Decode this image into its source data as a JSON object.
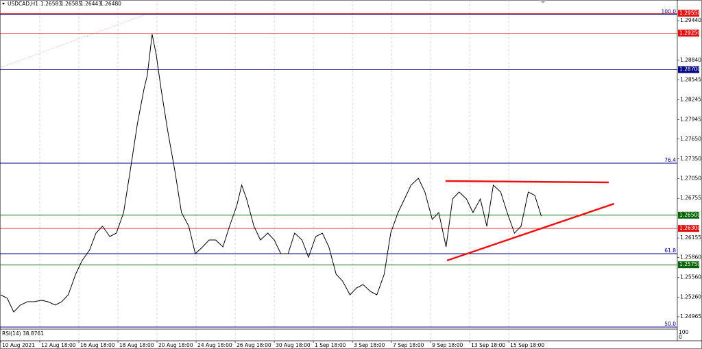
{
  "chart_data": {
    "type": "line",
    "title": "USDCAD,H1",
    "quotes": [
      "1.26583",
      "1.26585",
      "1.26443",
      "1.26480"
    ],
    "indicator": "RSI(14) 38.8761",
    "color": "#000000",
    "x": [
      0,
      8,
      16,
      24,
      33,
      41,
      50,
      58,
      67,
      75,
      83,
      92,
      100,
      109,
      117,
      125,
      134,
      142,
      151,
      159,
      168,
      176,
      180,
      186,
      191,
      197,
      205,
      214,
      222,
      231,
      239,
      248,
      256,
      264,
      273,
      281,
      290,
      296,
      302,
      311,
      319,
      328,
      336,
      344,
      353,
      361,
      370,
      378,
      387,
      395,
      403,
      412,
      420,
      429,
      437,
      445,
      454,
      462,
      471,
      479,
      488,
      496,
      504,
      513,
      521,
      530,
      538,
      547,
      555,
      563,
      572,
      580,
      589,
      597,
      605,
      614,
      622,
      631,
      639,
      648,
      656,
      664
    ],
    "values": [
      1.25296,
      1.25244,
      1.25037,
      1.25141,
      1.25192,
      1.25192,
      1.25213,
      1.25192,
      1.25141,
      1.25192,
      1.25296,
      1.25607,
      1.25814,
      1.25969,
      1.26228,
      1.26332,
      1.26177,
      1.26228,
      1.26539,
      1.27161,
      1.27886,
      1.28404,
      1.28611,
      1.29233,
      1.28922,
      1.28404,
      1.27782,
      1.27161,
      1.26539,
      1.26332,
      1.25918,
      1.26021,
      1.26125,
      1.26125,
      1.26021,
      1.26332,
      1.26643,
      1.26954,
      1.26746,
      1.26332,
      1.26125,
      1.26228,
      1.26125,
      1.25918,
      1.25918,
      1.26228,
      1.26125,
      1.25866,
      1.26177,
      1.26228,
      1.26021,
      1.25607,
      1.25503,
      1.25296,
      1.254,
      1.25451,
      1.25348,
      1.25296,
      1.25607,
      1.26228,
      1.26539,
      1.26746,
      1.26954,
      1.27057,
      1.2685,
      1.26436,
      1.26539,
      1.26021,
      1.26746,
      1.2685,
      1.26746,
      1.26539,
      1.26746,
      1.26332,
      1.26954,
      1.2685,
      1.26539,
      1.26228,
      1.26332,
      1.2685,
      1.26798,
      1.26487
    ],
    "xlim": [
      0,
      831
    ],
    "ylim": [
      1.2478,
      1.2957
    ],
    "xticks": [
      {
        "value": 0,
        "label": "10 Aug 2021"
      },
      {
        "value": 48,
        "label": "12 Aug 18:00"
      },
      {
        "value": 96,
        "label": "16 Aug 18:00"
      },
      {
        "value": 144,
        "label": "18 Aug 18:00"
      },
      {
        "value": 192,
        "label": "20 Aug 18:00"
      },
      {
        "value": 240,
        "label": "24 Aug 18:00"
      },
      {
        "value": 288,
        "label": "26 Aug 18:00"
      },
      {
        "value": 336,
        "label": "30 Aug 18:00"
      },
      {
        "value": 384,
        "label": "1 Sep 18:00"
      },
      {
        "value": 432,
        "label": "3 Sep 18:00"
      },
      {
        "value": 480,
        "label": "7 Sep 18:00"
      },
      {
        "value": 528,
        "label": "9 Sep 18:00"
      },
      {
        "value": 576,
        "label": "13 Sep 18:00"
      },
      {
        "value": 624,
        "label": "15 Sep 18:00"
      }
    ],
    "yticks": [
      {
        "value": 1.2944,
        "label": "1.29440"
      },
      {
        "value": 1.2884,
        "label": "1.28840"
      },
      {
        "value": 1.28545,
        "label": "1.28545"
      },
      {
        "value": 1.28245,
        "label": "1.28245"
      },
      {
        "value": 1.27945,
        "label": "1.27945"
      },
      {
        "value": 1.2765,
        "label": "1.27650"
      },
      {
        "value": 1.2735,
        "label": "1.27350"
      },
      {
        "value": 1.2705,
        "label": "1.27050"
      },
      {
        "value": 1.26755,
        "label": "1.26755"
      },
      {
        "value": 1.26155,
        "label": "1.26155"
      },
      {
        "value": 1.2586,
        "label": "1.25860"
      },
      {
        "value": 1.2556,
        "label": "1.25560"
      },
      {
        "value": 1.2526,
        "label": "1.25260"
      },
      {
        "value": 1.24965,
        "label": "1.24965"
      }
    ],
    "levels": [
      {
        "value": 1.2955,
        "label": "1.29550",
        "color": "#e01010"
      },
      {
        "value": 1.2925,
        "label": "1.29250",
        "color": "#e01010"
      },
      {
        "value": 1.287,
        "label": "1.28700",
        "color": "#000080"
      },
      {
        "value": 1.265,
        "label": "1.26500",
        "color": "#006400"
      },
      {
        "value": 1.263,
        "label": "1.26300",
        "color": "#e01010"
      },
      {
        "value": 1.2575,
        "label": "1.25750",
        "color": "#006400"
      }
    ],
    "fib_levels": [
      {
        "value": 1.2953,
        "label": "100.0"
      },
      {
        "value": 1.27285,
        "label": "76.4"
      },
      {
        "value": 1.25918,
        "label": "61.8"
      },
      {
        "value": 1.24809,
        "label": "50.0"
      }
    ],
    "rsi_yticks": [
      100,
      0
    ]
  }
}
